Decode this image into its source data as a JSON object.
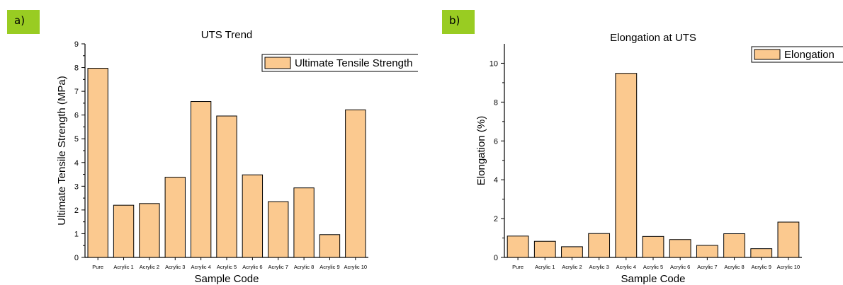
{
  "chart_data": [
    {
      "panel_label": "a)",
      "type": "bar",
      "title": "UTS Trend",
      "xlabel": "Sample Code",
      "ylabel": "Ultimate Tensile Strength (MPa)",
      "ylim": [
        0,
        9
      ],
      "yticks": [
        0,
        1,
        2,
        3,
        4,
        5,
        6,
        7,
        8,
        9
      ],
      "categories": [
        "Pure",
        "Acrylic 1",
        "Acrylic 2",
        "Acrylic 3",
        "Acrylic 4",
        "Acrylic 5",
        "Acrylic 6",
        "Acrylic 7",
        "Acrylic 8",
        "Acrylic 9",
        "Acrylic 10"
      ],
      "series": [
        {
          "name": "Ultimate Tensile Strength",
          "values": [
            7.97,
            2.2,
            2.27,
            3.38,
            6.57,
            5.96,
            3.48,
            2.35,
            2.93,
            0.96,
            6.22
          ]
        }
      ],
      "bar_color": "#fbc98f",
      "legend_position": "top-right",
      "grid": false
    },
    {
      "panel_label": "b)",
      "type": "bar",
      "title": "Elongation at UTS",
      "xlabel": "Sample Code",
      "ylabel": "Elongation (%)",
      "ylim": [
        0,
        11
      ],
      "yticks": [
        0,
        2,
        4,
        6,
        8,
        10
      ],
      "categories": [
        "Pure",
        "Acrylic 1",
        "Acrylic 2",
        "Acrylic 3",
        "Acrylic 4",
        "Acrylic 5",
        "Acrylic 6",
        "Acrylic 7",
        "Acrylic 8",
        "Acrylic 9",
        "Acrylic 10"
      ],
      "series": [
        {
          "name": "Elongation",
          "values": [
            1.1,
            0.83,
            0.55,
            1.23,
            9.48,
            1.08,
            0.92,
            0.62,
            1.22,
            0.45,
            1.82
          ]
        }
      ],
      "bar_color": "#fbc98f",
      "legend_position": "top-right",
      "grid": false
    }
  ]
}
